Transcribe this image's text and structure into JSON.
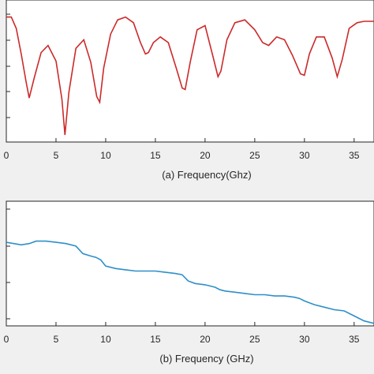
{
  "chart_data": [
    {
      "type": "line",
      "xlabel": "(a) Frequency(Ghz)",
      "ylabel": "",
      "xlim": [
        0,
        37
      ],
      "ylim": [
        0,
        1
      ],
      "xticks": [
        0,
        5,
        10,
        15,
        20,
        25,
        30,
        35
      ],
      "grid": false,
      "color": "#cc2a2a",
      "series": [
        {
          "x": [
            0,
            0.5,
            1,
            1.5,
            2,
            2.3,
            2.8,
            3.5,
            4.2,
            5,
            5.6,
            5.9,
            6.3,
            7,
            7.8,
            8.5,
            9.1,
            9.4,
            9.8,
            10.5,
            11.2,
            12,
            12.8,
            13.5,
            14,
            14.3,
            14.8,
            15.5,
            16.3,
            17.1,
            17.7,
            18,
            18.5,
            19.2,
            20,
            20.8,
            21.3,
            21.6,
            22.2,
            23,
            24,
            25,
            25.8,
            26.4,
            27.2,
            28,
            28.8,
            29.6,
            30,
            30.5,
            31.2,
            32,
            32.8,
            33.3,
            33.8,
            34.5,
            35.3,
            36,
            37
          ],
          "y": [
            0.88,
            0.88,
            0.8,
            0.62,
            0.42,
            0.31,
            0.45,
            0.63,
            0.68,
            0.57,
            0.3,
            0.05,
            0.35,
            0.66,
            0.72,
            0.56,
            0.32,
            0.28,
            0.52,
            0.76,
            0.86,
            0.88,
            0.84,
            0.7,
            0.62,
            0.63,
            0.7,
            0.74,
            0.7,
            0.52,
            0.38,
            0.37,
            0.56,
            0.79,
            0.82,
            0.6,
            0.46,
            0.5,
            0.72,
            0.84,
            0.86,
            0.79,
            0.7,
            0.68,
            0.74,
            0.72,
            0.61,
            0.48,
            0.47,
            0.62,
            0.74,
            0.74,
            0.59,
            0.46,
            0.58,
            0.8,
            0.84,
            0.85,
            0.85
          ]
        }
      ]
    },
    {
      "type": "line",
      "xlabel": "(b) Frequency (GHz)",
      "ylabel": "",
      "xlim": [
        0,
        37
      ],
      "ylim": [
        0,
        1
      ],
      "xticks": [
        0,
        5,
        10,
        15,
        20,
        25,
        30,
        35
      ],
      "grid": false,
      "color": "#2e8fc9",
      "series": [
        {
          "x": [
            0,
            1.5,
            2.3,
            3,
            4,
            5,
            6,
            7,
            7.7,
            8.5,
            9,
            9.5,
            10,
            11,
            12,
            13,
            14,
            15,
            16,
            17,
            17.7,
            18.3,
            19,
            20,
            21,
            21.5,
            22,
            23,
            24,
            25,
            26,
            27,
            28,
            29,
            29.5,
            30,
            31,
            32,
            33,
            34,
            35,
            36,
            37
          ],
          "y": [
            0.67,
            0.65,
            0.66,
            0.68,
            0.68,
            0.67,
            0.66,
            0.64,
            0.58,
            0.56,
            0.55,
            0.53,
            0.48,
            0.46,
            0.45,
            0.44,
            0.44,
            0.44,
            0.43,
            0.42,
            0.41,
            0.36,
            0.34,
            0.33,
            0.31,
            0.29,
            0.28,
            0.27,
            0.26,
            0.25,
            0.25,
            0.24,
            0.24,
            0.23,
            0.22,
            0.2,
            0.17,
            0.15,
            0.13,
            0.12,
            0.08,
            0.04,
            0.02
          ]
        }
      ]
    }
  ]
}
